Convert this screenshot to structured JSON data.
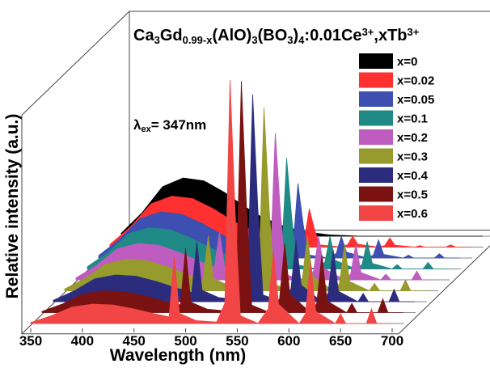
{
  "chart_data": {
    "type": "waterfall",
    "title": [
      {
        "text": "Ca"
      },
      {
        "text": "3",
        "shift": "sub"
      },
      {
        "text": "Gd"
      },
      {
        "text": "0.99-x",
        "shift": "sub"
      },
      {
        "text": "(AlO)"
      },
      {
        "text": "3",
        "shift": "sub"
      },
      {
        "text": "(BO"
      },
      {
        "text": "3",
        "shift": "sub"
      },
      {
        "text": ")"
      },
      {
        "text": "4",
        "shift": "sub"
      },
      {
        "text": ":0.01Ce"
      },
      {
        "text": "3+",
        "shift": "sup"
      },
      {
        "text": ",xTb"
      },
      {
        "text": "3+",
        "shift": "sup"
      }
    ],
    "annotation": [
      {
        "text": "λ"
      },
      {
        "text": "ex",
        "shift": "sub"
      },
      {
        "text": "= 347nm"
      }
    ],
    "x_label": "Wavelength (nm)",
    "y_label": "Relative intensity (a.u.)",
    "xlim": [
      350,
      700
    ],
    "xticks": [
      350,
      400,
      450,
      500,
      550,
      600,
      650,
      700
    ],
    "ylim": [
      0,
      100
    ],
    "legend": "upper right",
    "x": [
      350,
      370,
      390,
      410,
      430,
      450,
      470,
      484,
      489,
      494,
      510,
      530,
      538,
      543,
      548,
      553,
      570,
      580,
      585,
      590,
      610,
      616,
      621,
      626,
      645,
      650,
      655,
      675,
      680,
      685,
      700
    ],
    "series": [
      {
        "name": "x=0",
        "color": "#000000",
        "values": [
          1.2,
          9.6,
          20.4,
          24,
          22.8,
          18,
          12,
          8.4,
          7.2,
          6.5,
          3.6,
          1.7,
          1.2,
          1,
          0.7,
          0.5,
          0.2,
          0,
          0,
          0,
          0,
          0,
          0,
          0,
          0,
          0,
          0,
          0,
          0,
          0,
          0
        ]
      },
      {
        "name": "x=0.02",
        "color": "#ff3030",
        "values": [
          1.1,
          8.4,
          17.9,
          21,
          20,
          15.8,
          10.5,
          7.4,
          10.1,
          6,
          3.2,
          1.5,
          2.3,
          15.8,
          7.4,
          0.9,
          0.2,
          0.9,
          4.5,
          1.2,
          0,
          0.6,
          3.8,
          0.8,
          0,
          0.6,
          0,
          0,
          0.9,
          0,
          0
        ]
      },
      {
        "name": "x=0.05",
        "color": "#3d4fb0",
        "values": [
          1,
          7.6,
          16.2,
          19,
          18.1,
          14.3,
          9.5,
          6.7,
          13.2,
          5.7,
          2.9,
          1.3,
          3.4,
          30.8,
          14.1,
          1.3,
          0.2,
          1.8,
          9,
          2.4,
          0,
          1.2,
          7.5,
          1.5,
          0,
          1.2,
          0,
          0,
          1.8,
          0,
          0
        ]
      },
      {
        "name": "x=0.1",
        "color": "#1f8a86",
        "values": [
          0.9,
          6.8,
          14.5,
          17,
          16.2,
          12.8,
          8.5,
          6,
          16.4,
          5.5,
          2.6,
          1.2,
          4.5,
          45.7,
          20.8,
          1.7,
          0.2,
          2.7,
          13.5,
          3.6,
          0,
          1.8,
          11.3,
          2.3,
          0,
          1.8,
          0,
          0,
          2.7,
          0,
          0
        ]
      },
      {
        "name": "x=0.2",
        "color": "#bf5cbf",
        "values": [
          0.8,
          6,
          12.8,
          15,
          14.3,
          11.3,
          7.5,
          5.3,
          19.5,
          5.3,
          2.3,
          1.1,
          5.6,
          60.6,
          27.5,
          2.1,
          0.2,
          3.6,
          18,
          4.8,
          0,
          2.4,
          15,
          3,
          0,
          2.4,
          0,
          0,
          3.6,
          0,
          0
        ]
      },
      {
        "name": "x=0.3",
        "color": "#979a2c",
        "values": [
          0.7,
          5.2,
          11.1,
          13,
          12.4,
          9.8,
          6.5,
          4.6,
          22.7,
          5,
          2,
          0.9,
          6.7,
          75.5,
          34.2,
          2.6,
          0.1,
          4.5,
          22.5,
          6,
          0,
          3,
          18.8,
          3.8,
          0,
          3,
          0,
          0,
          4.5,
          0,
          0
        ]
      },
      {
        "name": "x=0.4",
        "color": "#2c2c7e",
        "values": [
          0.6,
          4.4,
          9.4,
          11,
          10.5,
          8.3,
          5.5,
          3.9,
          24.6,
          4.7,
          1.7,
          0.8,
          7.4,
          85.4,
          38.6,
          2.8,
          0.1,
          5.1,
          25.5,
          6.8,
          0,
          3.4,
          21.3,
          4.3,
          0,
          3.4,
          0,
          0,
          5.1,
          0,
          0
        ]
      },
      {
        "name": "x=0.5",
        "color": "#7a1212",
        "values": [
          0.5,
          3.6,
          7.7,
          9,
          8.6,
          6.8,
          4.5,
          3.2,
          26.5,
          4.3,
          1.4,
          0.6,
          8.1,
          95.4,
          43.1,
          3.1,
          0.1,
          5.7,
          28.5,
          7.6,
          0,
          3.8,
          23.8,
          4.8,
          0,
          3.8,
          0,
          0,
          5.7,
          0,
          0
        ]
      },
      {
        "name": "x=0.6",
        "color": "#f24545",
        "values": [
          0.4,
          3.2,
          6.8,
          8,
          7.6,
          6,
          4,
          2.8,
          27.4,
          4.2,
          1.2,
          0.6,
          8.4,
          100.3,
          45.2,
          3.2,
          0.1,
          6,
          30,
          8,
          0,
          4,
          25,
          5,
          0,
          4,
          0,
          0,
          6,
          0,
          0
        ]
      }
    ]
  }
}
